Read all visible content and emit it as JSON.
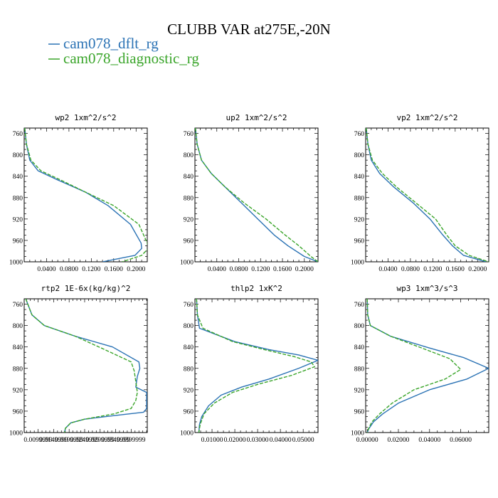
{
  "title": "CLUBB VAR at275E,-20N",
  "legend": [
    {
      "label": "cam078_dflt_rg",
      "color": "#2a72b4"
    },
    {
      "label": "cam078_diagnostic_rg",
      "color": "#3aa52a"
    }
  ],
  "chart_data": [
    {
      "type": "line",
      "title": "wp2   1xm^2/s^2",
      "ylim": [
        1000,
        750
      ],
      "y_ticks": [
        "760",
        "800",
        "840",
        "880",
        "920",
        "960",
        "1000"
      ],
      "xlim": [
        0.0,
        0.22
      ],
      "x_ticks": [
        "0.0400",
        "0.0800",
        "0.1200",
        "0.1600",
        "0.2000"
      ],
      "x_tick_values": [
        0.04,
        0.08,
        0.12,
        0.16,
        0.2
      ],
      "series": [
        {
          "color": "#2a72b4",
          "dash": false,
          "x": [
            0.001,
            0.004,
            0.01,
            0.025,
            0.06,
            0.11,
            0.15,
            0.19,
            0.209,
            0.21,
            0.198,
            0.14
          ],
          "y": [
            750,
            780,
            810,
            830,
            847,
            870,
            895,
            930,
            965,
            975,
            988,
            1000
          ]
        },
        {
          "color": "#3aa52a",
          "dash": true,
          "x": [
            0.001,
            0.004,
            0.012,
            0.03,
            0.065,
            0.11,
            0.16,
            0.205,
            0.22,
            0.222,
            0.21,
            0.175
          ],
          "y": [
            750,
            780,
            810,
            830,
            847,
            870,
            895,
            930,
            965,
            975,
            988,
            1000
          ]
        }
      ]
    },
    {
      "type": "line",
      "title": "up2   1xm^2/s^2",
      "ylim": [
        1000,
        750
      ],
      "y_ticks": [
        "760",
        "800",
        "840",
        "880",
        "920",
        "960",
        "1000"
      ],
      "xlim": [
        0.0,
        0.225
      ],
      "x_ticks": [
        "0.0400",
        "0.0800",
        "0.1200",
        "0.1600",
        "0.2000"
      ],
      "x_tick_values": [
        0.04,
        0.08,
        0.12,
        0.16,
        0.2
      ],
      "series": [
        {
          "color": "#2a72b4",
          "dash": false,
          "x": [
            0.001,
            0.004,
            0.012,
            0.03,
            0.055,
            0.085,
            0.115,
            0.145,
            0.17,
            0.2,
            0.225
          ],
          "y": [
            750,
            780,
            810,
            835,
            860,
            890,
            920,
            950,
            970,
            990,
            1000
          ]
        },
        {
          "color": "#3aa52a",
          "dash": true,
          "x": [
            0.001,
            0.004,
            0.012,
            0.03,
            0.055,
            0.09,
            0.13,
            0.165,
            0.19,
            0.212,
            0.225
          ],
          "y": [
            750,
            780,
            810,
            835,
            860,
            890,
            920,
            950,
            970,
            990,
            1000
          ]
        }
      ]
    },
    {
      "type": "line",
      "title": "vp2   1xm^2/s^2",
      "ylim": [
        1000,
        750
      ],
      "y_ticks": [
        "760",
        "800",
        "840",
        "880",
        "920",
        "960",
        "1000"
      ],
      "xlim": [
        0.0,
        0.22
      ],
      "x_ticks": [
        "0.0400",
        "0.0800",
        "0.1200",
        "0.1600",
        "0.2000"
      ],
      "x_tick_values": [
        0.04,
        0.08,
        0.12,
        0.16,
        0.2
      ],
      "series": [
        {
          "color": "#2a72b4",
          "dash": false,
          "x": [
            0.001,
            0.004,
            0.01,
            0.025,
            0.05,
            0.085,
            0.115,
            0.138,
            0.155,
            0.175,
            0.215
          ],
          "y": [
            750,
            780,
            810,
            835,
            860,
            890,
            920,
            950,
            970,
            988,
            1000
          ]
        },
        {
          "color": "#3aa52a",
          "dash": true,
          "x": [
            0.001,
            0.004,
            0.012,
            0.03,
            0.055,
            0.09,
            0.125,
            0.145,
            0.16,
            0.185,
            0.22
          ],
          "y": [
            750,
            780,
            810,
            835,
            860,
            890,
            920,
            950,
            970,
            988,
            1000
          ]
        }
      ]
    },
    {
      "type": "line",
      "title": "rtp2   1E-6x(kg/kg)^2",
      "ylim": [
        1000,
        750
      ],
      "y_ticks": [
        "760",
        "800",
        "840",
        "880",
        "920",
        "960",
        "1000"
      ],
      "xlim": [
        0.0055,
        0.0452
      ],
      "x_ticks": [
        "0.0099999",
        "0.0149999",
        "0.0199999",
        "0.0249999",
        "0.0299999",
        "0.0349999",
        "0.0399999"
      ],
      "x_tick_values": [
        0.0099999,
        0.0149999,
        0.0199999,
        0.0249999,
        0.0299999,
        0.0349999,
        0.0399999
      ],
      "series": [
        {
          "color": "#2a72b4",
          "dash": false,
          "x": [
            0.006,
            0.008,
            0.012,
            0.022,
            0.034,
            0.0425,
            0.0428,
            0.042,
            0.0415,
            0.045,
            0.045,
            0.044,
            0.035,
            0.025,
            0.0205,
            0.0188,
            0.0185
          ],
          "y": [
            750,
            780,
            800,
            820,
            840,
            868,
            880,
            895,
            915,
            925,
            955,
            962,
            968,
            975,
            982,
            992,
            1000
          ]
        },
        {
          "color": "#3aa52a",
          "dash": true,
          "x": [
            0.006,
            0.008,
            0.012,
            0.022,
            0.0315,
            0.04,
            0.041,
            0.0415,
            0.042,
            0.0415,
            0.04,
            0.0345,
            0.025,
            0.0205,
            0.0188,
            0.0185
          ],
          "y": [
            750,
            780,
            800,
            820,
            845,
            868,
            885,
            905,
            925,
            940,
            955,
            965,
            975,
            982,
            992,
            1000
          ]
        }
      ]
    },
    {
      "type": "line",
      "title": "thlp2   1xK^2",
      "ylim": [
        1000,
        750
      ],
      "y_ticks": [
        "760",
        "800",
        "840",
        "880",
        "920",
        "960",
        "1000"
      ],
      "xlim": [
        0.0025,
        0.0565
      ],
      "x_ticks": [
        "0.01000",
        "0.02000",
        "0.03000",
        "0.04000",
        "0.05000"
      ],
      "x_tick_values": [
        0.01,
        0.02,
        0.03,
        0.04,
        0.05
      ],
      "series": [
        {
          "color": "#2a72b4",
          "dash": false,
          "x": [
            0.0032,
            0.0036,
            0.0045,
            0.02,
            0.035,
            0.048,
            0.0565,
            0.048,
            0.035,
            0.023,
            0.014,
            0.0085,
            0.0055,
            0.0045,
            0.0042
          ],
          "y": [
            750,
            780,
            805,
            830,
            845,
            855,
            865,
            880,
            900,
            915,
            930,
            950,
            970,
            985,
            1000
          ]
        },
        {
          "color": "#3aa52a",
          "dash": true,
          "x": [
            0.0032,
            0.0036,
            0.006,
            0.019,
            0.033,
            0.046,
            0.0535,
            0.055,
            0.045,
            0.03,
            0.019,
            0.011,
            0.0065,
            0.0048,
            0.0042
          ],
          "y": [
            750,
            780,
            805,
            830,
            845,
            858,
            868,
            877,
            893,
            910,
            925,
            945,
            965,
            985,
            1000
          ]
        }
      ]
    },
    {
      "type": "line",
      "title": "wp3   1xm^3/s^3",
      "ylim": [
        1000,
        750
      ],
      "y_ticks": [
        "760",
        "800",
        "840",
        "880",
        "920",
        "960",
        "1000"
      ],
      "xlim": [
        -0.001,
        0.078
      ],
      "x_ticks": [
        "0.00000",
        "0.02000",
        "0.04000",
        "0.06000"
      ],
      "x_tick_values": [
        0.0,
        0.02,
        0.04,
        0.06
      ],
      "series": [
        {
          "color": "#2a72b4",
          "dash": false,
          "x": [
            0.0,
            0.0003,
            0.002,
            0.015,
            0.04,
            0.062,
            0.078,
            0.064,
            0.04,
            0.02,
            0.01,
            0.004,
            0.001,
            0.0
          ],
          "y": [
            750,
            780,
            800,
            820,
            842,
            860,
            880,
            900,
            920,
            945,
            965,
            980,
            993,
            1000
          ]
        },
        {
          "color": "#3aa52a",
          "dash": true,
          "x": [
            0.0,
            0.0003,
            0.002,
            0.015,
            0.035,
            0.053,
            0.06,
            0.05,
            0.03,
            0.016,
            0.008,
            0.003,
            0.0008,
            0.0
          ],
          "y": [
            750,
            780,
            800,
            820,
            842,
            862,
            882,
            900,
            920,
            945,
            965,
            980,
            993,
            1000
          ]
        }
      ]
    }
  ]
}
